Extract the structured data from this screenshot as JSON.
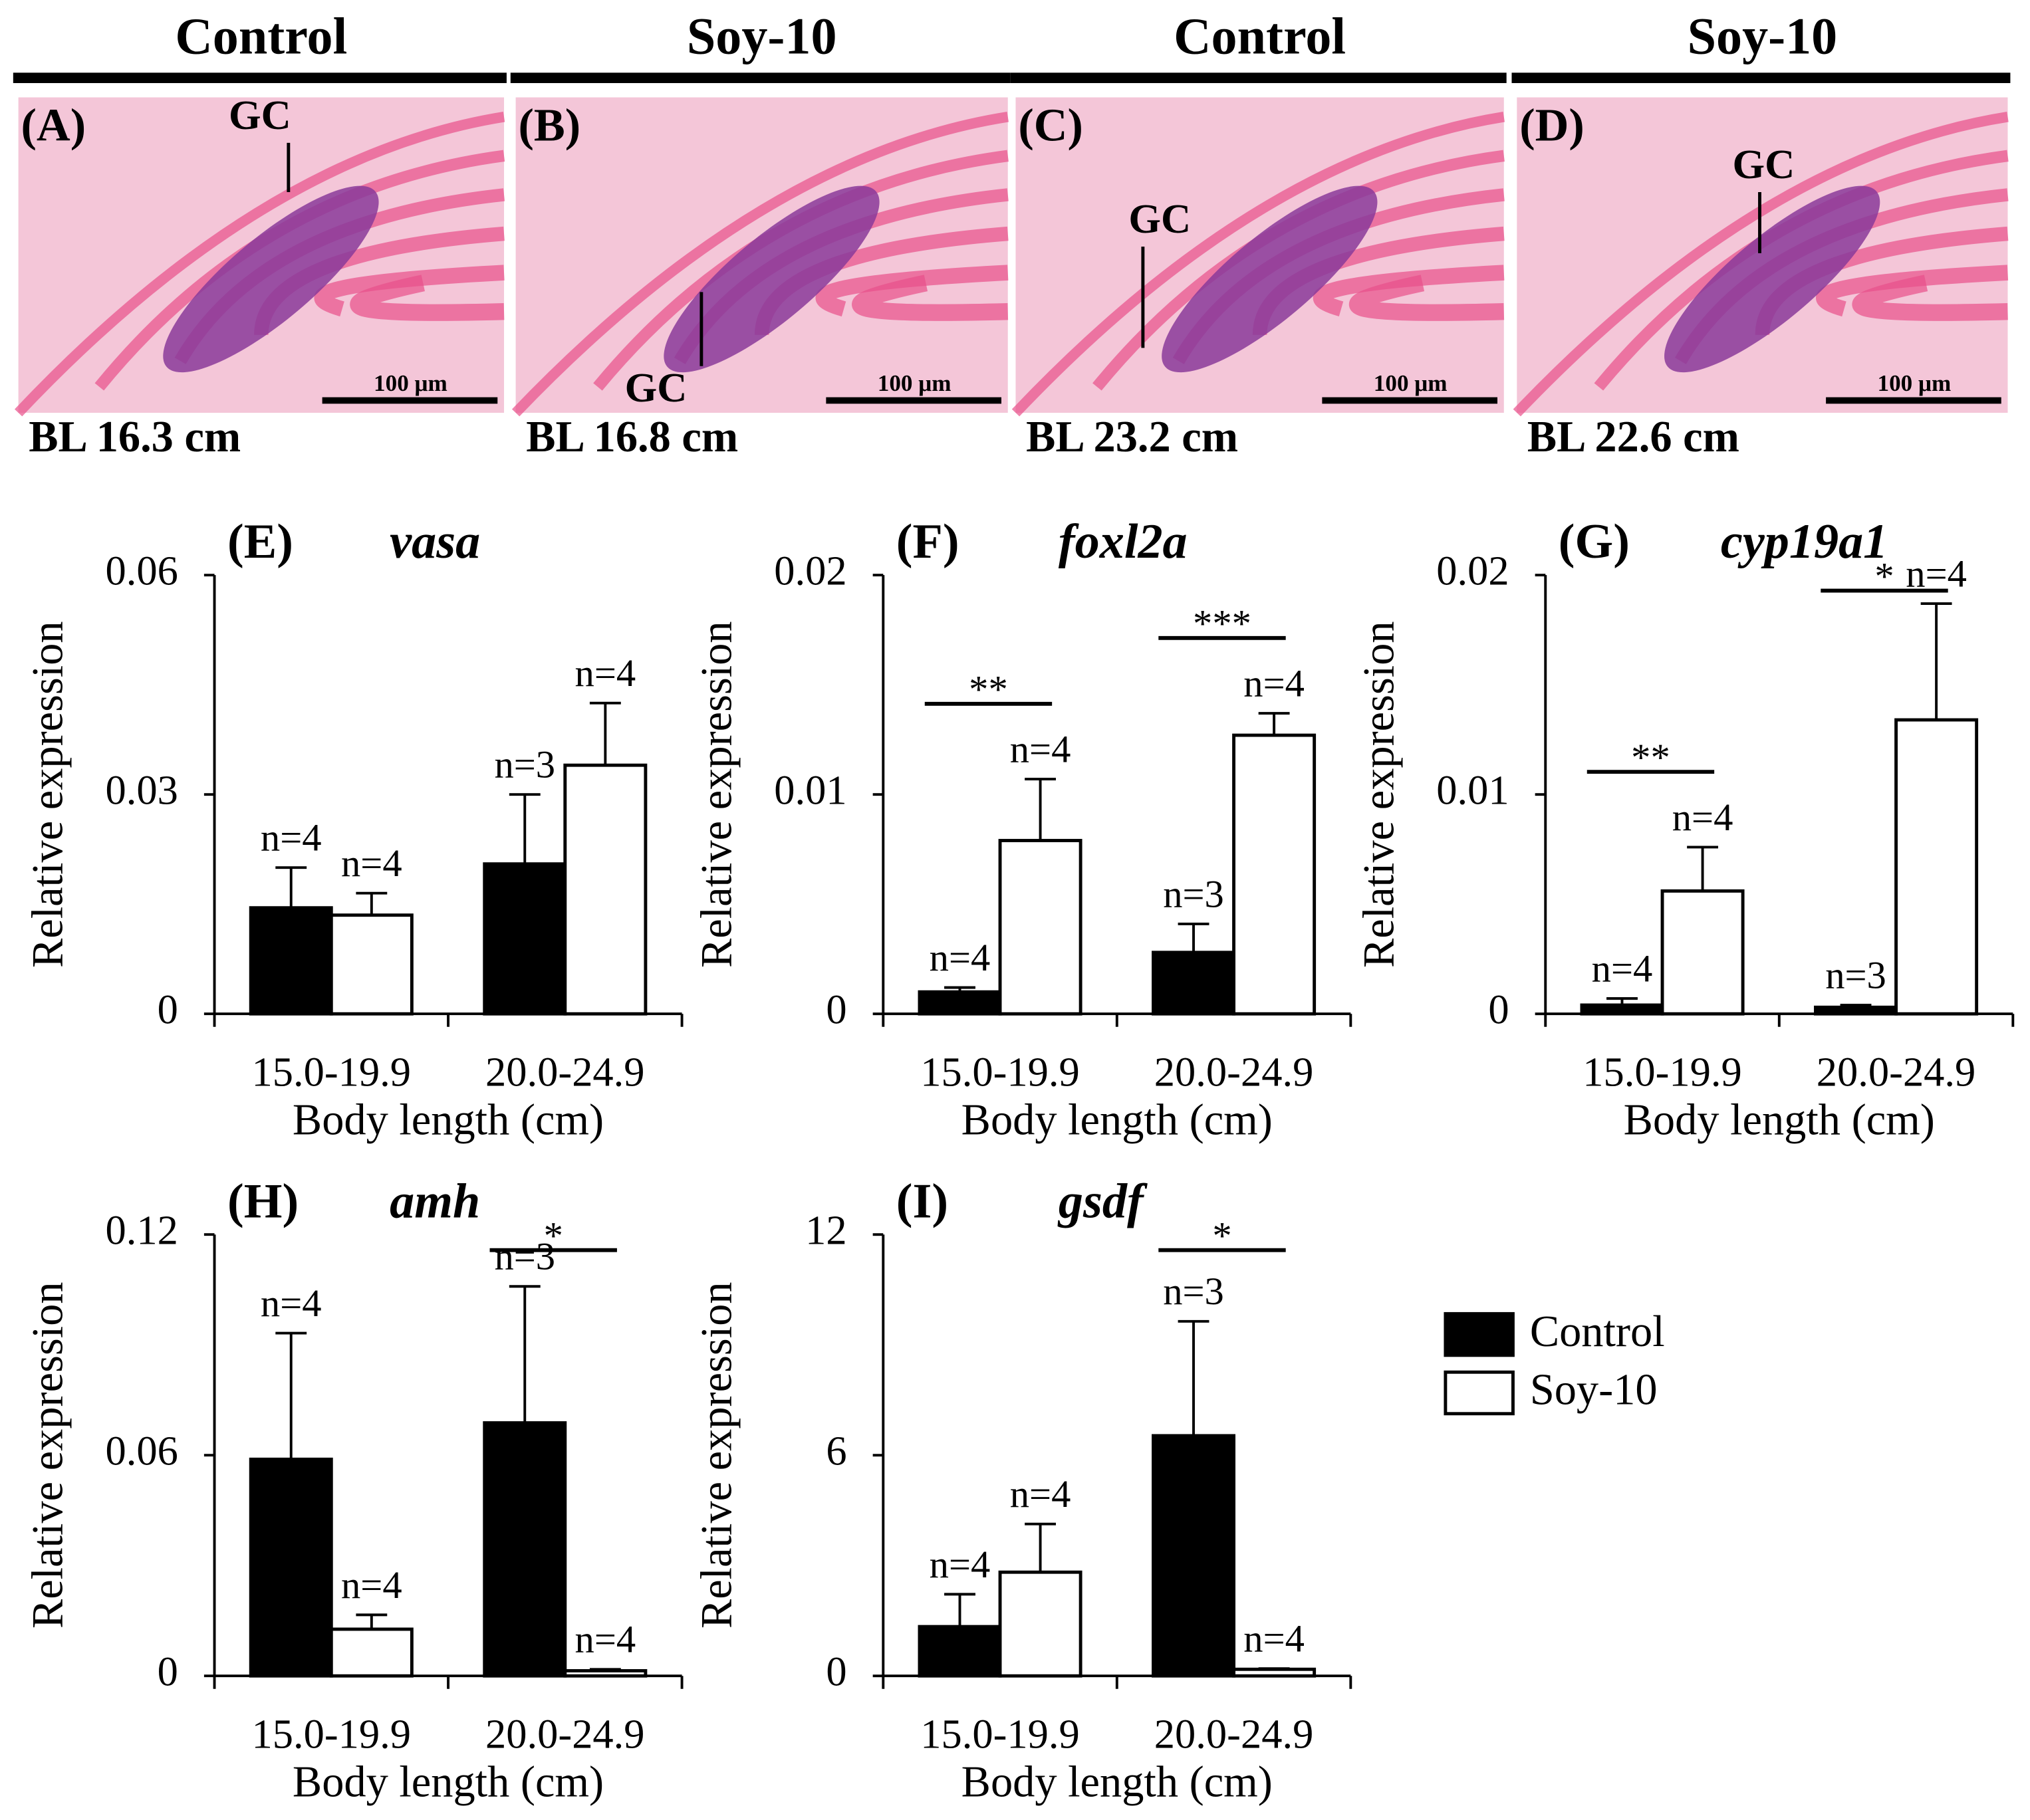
{
  "micrographs": [
    {
      "group": "Control",
      "label": "(A)",
      "marker": "GC",
      "scale": "100 μm",
      "body_length": "BL 16.3 cm"
    },
    {
      "group": "Soy-10",
      "label": "(B)",
      "marker": "GC",
      "scale": "100 μm",
      "body_length": "BL 16.8 cm"
    },
    {
      "group": "Control",
      "label": "(C)",
      "marker": "GC",
      "scale": "100 μm",
      "body_length": "BL 23.2 cm"
    },
    {
      "group": "Soy-10",
      "label": "(D)",
      "marker": "GC",
      "scale": "100 μm",
      "body_length": "BL 22.6 cm"
    }
  ],
  "legend": {
    "entries": [
      {
        "name": "Control",
        "color": "#000000"
      },
      {
        "name": "Soy-10",
        "color": "#ffffff"
      }
    ]
  },
  "chart_data": [
    {
      "type": "bar",
      "panel": "(E)",
      "title": "vasa",
      "xlabel": "Body length (cm)",
      "ylabel": "Relative expression",
      "categories": [
        "15.0-19.9",
        "20.0-24.9"
      ],
      "ylim": [
        0,
        0.06
      ],
      "yticks": [
        0,
        0.03,
        0.06
      ],
      "series": [
        {
          "color": "#000000",
          "values": [
            0.0145,
            0.0205
          ],
          "errors": [
            0.0055,
            0.0095
          ],
          "n_labels": [
            "n=4",
            "n=3"
          ]
        },
        {
          "color": "#ffffff",
          "values": [
            0.0135,
            0.034
          ],
          "errors": [
            0.003,
            0.0085
          ],
          "n_labels": [
            "n=4",
            "n=4"
          ]
        }
      ],
      "significance": [
        null,
        null
      ]
    },
    {
      "type": "bar",
      "panel": "(F)",
      "title": "foxl2a",
      "xlabel": "Body length (cm)",
      "ylabel": "Relative expression",
      "categories": [
        "15.0-19.9",
        "20.0-24.9"
      ],
      "ylim": [
        0,
        0.02
      ],
      "yticks": [
        0,
        0.01,
        0.02
      ],
      "series": [
        {
          "color": "#000000",
          "values": [
            0.001,
            0.0028
          ],
          "errors": [
            0.0002,
            0.0013
          ],
          "n_labels": [
            "n=4",
            "n=3"
          ]
        },
        {
          "color": "#ffffff",
          "values": [
            0.0079,
            0.0127
          ],
          "errors": [
            0.0028,
            0.001
          ],
          "n_labels": [
            "n=4",
            "n=4"
          ]
        }
      ],
      "significance": [
        "**",
        "***"
      ]
    },
    {
      "type": "bar",
      "panel": "(G)",
      "title": "cyp19a1",
      "xlabel": "Body length (cm)",
      "ylabel": "Relative expression",
      "categories": [
        "15.0-19.9",
        "20.0-24.9"
      ],
      "ylim": [
        0,
        0.02
      ],
      "yticks": [
        0,
        0.01,
        0.02
      ],
      "series": [
        {
          "color": "#000000",
          "values": [
            0.0004,
            0.0003
          ],
          "errors": [
            0.0003,
            0.0001
          ],
          "n_labels": [
            "n=4",
            "n=3"
          ]
        },
        {
          "color": "#ffffff",
          "values": [
            0.0056,
            0.0134
          ],
          "errors": [
            0.002,
            0.0053
          ],
          "n_labels": [
            "n=4",
            "n=4"
          ]
        }
      ],
      "significance": [
        "**",
        "*"
      ]
    },
    {
      "type": "bar",
      "panel": "(H)",
      "title": "amh",
      "xlabel": "Body length (cm)",
      "ylabel": "Relative expression",
      "categories": [
        "15.0-19.9",
        "20.0-24.9"
      ],
      "ylim": [
        0,
        0.12
      ],
      "yticks": [
        0,
        0.06,
        0.12
      ],
      "series": [
        {
          "color": "#000000",
          "values": [
            0.0589,
            0.0688
          ],
          "errors": [
            0.0343,
            0.0371
          ],
          "n_labels": [
            "n=4",
            "n=3"
          ]
        },
        {
          "color": "#ffffff",
          "values": [
            0.0127,
            0.0014
          ],
          "errors": [
            0.0039,
            0.0004
          ],
          "n_labels": [
            "n=4",
            "n=4"
          ]
        }
      ],
      "significance": [
        null,
        "*"
      ]
    },
    {
      "type": "bar",
      "panel": "(I)",
      "title": "gsdf",
      "xlabel": "Body length (cm)",
      "ylabel": "Relative expression",
      "categories": [
        "15.0-19.9",
        "20.0-24.9"
      ],
      "ylim": [
        0,
        12
      ],
      "yticks": [
        0,
        6,
        12
      ],
      "series": [
        {
          "color": "#000000",
          "values": [
            1.34,
            6.53
          ],
          "errors": [
            0.88,
            3.11
          ],
          "n_labels": [
            "n=4",
            "n=3"
          ]
        },
        {
          "color": "#ffffff",
          "values": [
            2.82,
            0.18
          ],
          "errors": [
            1.31,
            0.02
          ],
          "n_labels": [
            "n=4",
            "n=4"
          ]
        }
      ],
      "significance": [
        null,
        "*"
      ]
    }
  ]
}
